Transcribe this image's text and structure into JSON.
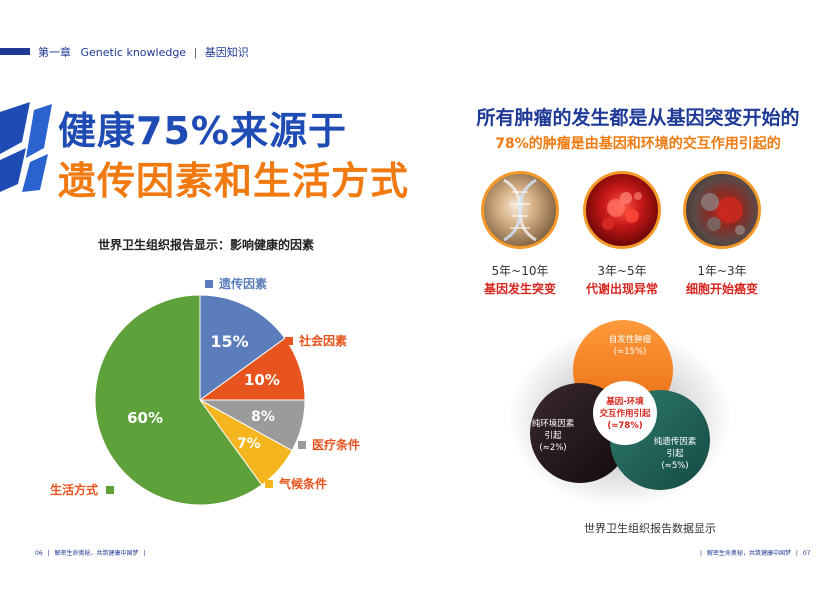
{
  "header": {
    "chapter": "第一章",
    "english": "Genetic knowledge",
    "separator": "|",
    "chinese": "基因知识"
  },
  "left": {
    "title_line1": "健康75%来源于",
    "title_line2": "遗传因素和生活方式",
    "pie_title": "世界卫生组织报告显示：影响健康的因素"
  },
  "chart_data": {
    "type": "pie",
    "title": "世界卫生组织报告显示：影响健康的因素",
    "slices": [
      {
        "name": "遗传因素",
        "value": 15,
        "label": "15%",
        "color": "#5b7dbb"
      },
      {
        "name": "社会因素",
        "value": 10,
        "label": "10%",
        "color": "#e8541e"
      },
      {
        "name": "医疗条件",
        "value": 8,
        "label": "8%",
        "color": "#9b9b9b"
      },
      {
        "name": "气候条件",
        "value": 7,
        "label": "7%",
        "color": "#f5b51e"
      },
      {
        "name": "生活方式",
        "value": 60,
        "label": "60%",
        "color": "#5ea03a"
      }
    ]
  },
  "right": {
    "title_line1": "所有肿瘤的发生都是从基因突变开始的",
    "title_line2": "78%的肿瘤是由基因和环境的交互作用引起的",
    "stages": [
      {
        "time": "5年~10年",
        "label": "基因发生突变"
      },
      {
        "time": "3年~5年",
        "label": "代谢出现异常"
      },
      {
        "time": "1年~3年",
        "label": "细胞开始癌变"
      }
    ],
    "venn": {
      "top_line1": "自发性肿瘤",
      "top_line2": "(≈15%)",
      "left_line1": "纯环境因素",
      "left_line2": "引起",
      "left_line3": "(≈2%)",
      "right_line1": "纯遗传因素",
      "right_line2": "引起",
      "right_line3": "(≈5%)",
      "center_line1": "基因-环境",
      "center_line2": "交互作用引起",
      "center_line3": "(≈78%)"
    },
    "source": "世界卫生组织报告数据显示"
  },
  "footer": {
    "left_page": "06",
    "left_text": "解密生命奥秘，共筑健康中国梦",
    "right_text": "解密生命奥秘，共筑健康中国梦",
    "right_page": "07",
    "sep": "|"
  },
  "colors": {
    "brand_blue": "#1e3a96",
    "brand_orange": "#f07a10",
    "accent_red": "#d7261f"
  }
}
